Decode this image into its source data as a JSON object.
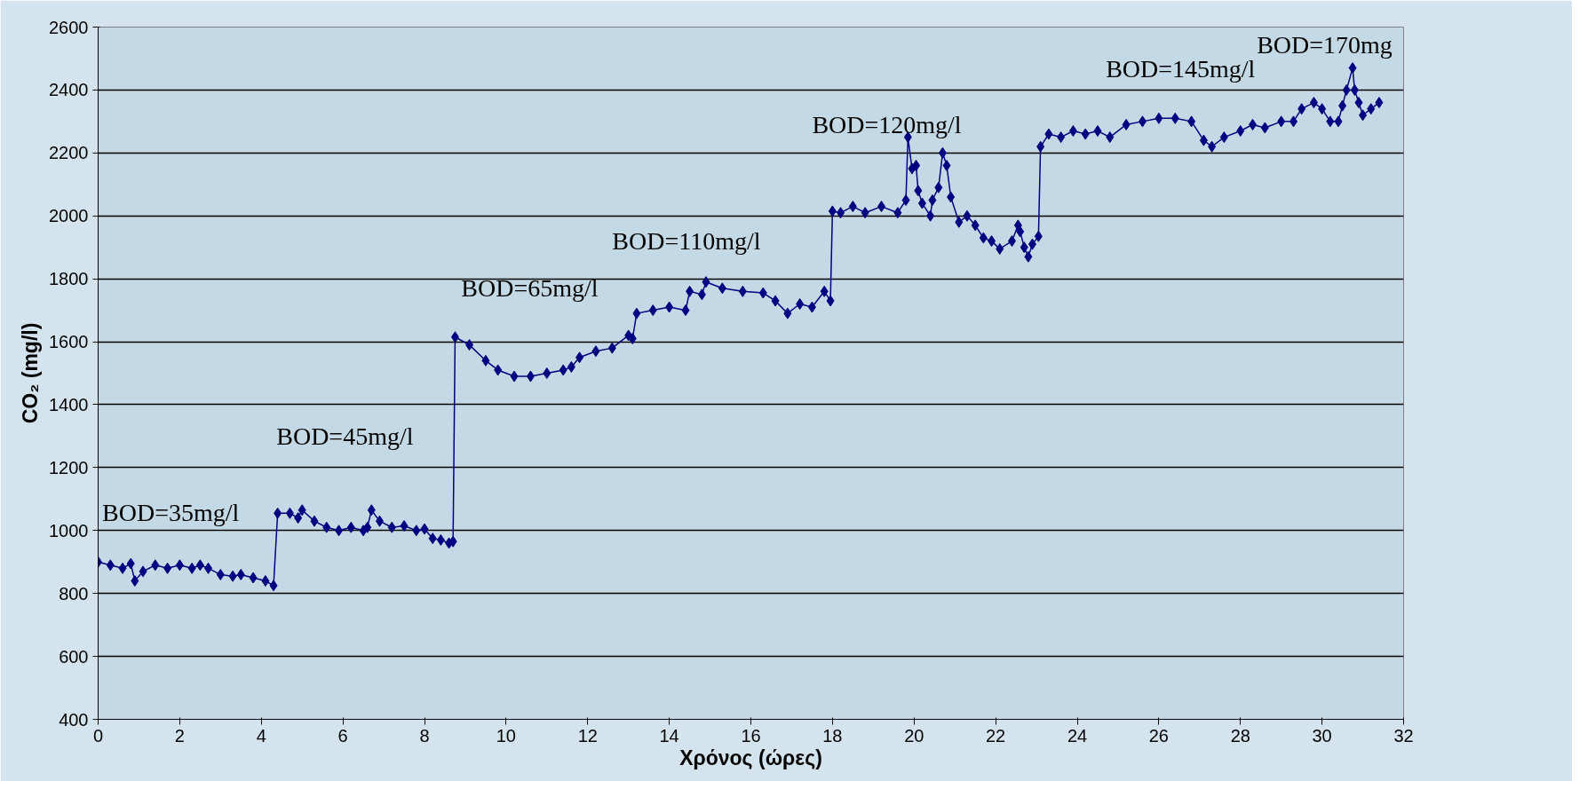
{
  "chart_data": {
    "type": "line",
    "xlabel": "Χρόνος (ώρες)",
    "ylabel": "CO₂ (mg/l)",
    "annotations": [
      "BOD=35mg/l",
      "BOD=45mg/l",
      "BOD=65mg/l",
      "BOD=110mg/l",
      "BOD=120mg/l",
      "BOD=145mg/l",
      "BOD=170mg"
    ],
    "x": [
      0,
      0.3,
      0.6,
      0.8,
      0.9,
      1.1,
      1.4,
      1.7,
      2,
      2.3,
      2.5,
      2.7,
      3,
      3.3,
      3.5,
      3.8,
      4.1,
      4.3,
      4.4,
      4.7,
      4.9,
      5,
      5.3,
      5.6,
      5.9,
      6.2,
      6.5,
      6.6,
      6.7,
      6.9,
      7.2,
      7.5,
      7.8,
      8,
      8.2,
      8.4,
      8.6,
      8.7,
      8.75,
      9.1,
      9.5,
      9.8,
      10.2,
      10.6,
      11,
      11.4,
      11.6,
      11.8,
      12.2,
      12.6,
      13,
      13.1,
      13.2,
      13.6,
      14,
      14.4,
      14.5,
      14.8,
      14.9,
      15.3,
      15.8,
      16.3,
      16.6,
      16.9,
      17.2,
      17.5,
      17.8,
      17.95,
      18,
      18.2,
      18.5,
      18.8,
      19.2,
      19.6,
      19.8,
      19.85,
      19.95,
      20.05,
      20.1,
      20.2,
      20.4,
      20.45,
      20.6,
      20.7,
      20.8,
      20.9,
      21.1,
      21.3,
      21.5,
      21.7,
      21.9,
      22.1,
      22.4,
      22.55,
      22.6,
      22.7,
      22.8,
      22.9,
      23.05,
      23.1,
      23.3,
      23.6,
      23.9,
      24.2,
      24.5,
      24.8,
      25.2,
      25.6,
      26,
      26.4,
      26.8,
      27.1,
      27.3,
      27.6,
      28,
      28.3,
      28.6,
      29,
      29.3,
      29.5,
      29.8,
      30,
      30.2,
      30.4,
      30.5,
      30.6,
      30.75,
      30.8,
      30.9,
      31,
      31.2,
      31.4
    ],
    "series": [
      {
        "color": "#000080",
        "values": [
          900,
          890,
          880,
          895,
          840,
          870,
          890,
          880,
          890,
          880,
          890,
          880,
          860,
          855,
          860,
          850,
          840,
          825,
          1055,
          1055,
          1040,
          1065,
          1030,
          1010,
          1000,
          1010,
          1000,
          1010,
          1065,
          1030,
          1010,
          1015,
          1000,
          1005,
          975,
          970,
          960,
          965,
          1615,
          1590,
          1540,
          1510,
          1490,
          1490,
          1500,
          1510,
          1520,
          1550,
          1570,
          1580,
          1620,
          1610,
          1690,
          1700,
          1710,
          1700,
          1760,
          1750,
          1790,
          1770,
          1760,
          1755,
          1730,
          1690,
          1720,
          1710,
          1760,
          1730,
          2015,
          2010,
          2030,
          2010,
          2030,
          2010,
          2050,
          2250,
          2150,
          2160,
          2080,
          2040,
          2000,
          2050,
          2090,
          2200,
          2160,
          2060,
          1980,
          2000,
          1970,
          1930,
          1920,
          1895,
          1920,
          1970,
          1950,
          1900,
          1870,
          1910,
          1935,
          2220,
          2260,
          2250,
          2270,
          2260,
          2270,
          2250,
          2290,
          2300,
          2310,
          2310,
          2300,
          2240,
          2220,
          2250,
          2270,
          2290,
          2280,
          2300,
          2300,
          2340,
          2360,
          2340,
          2300,
          2300,
          2350,
          2400,
          2470,
          2400,
          2360,
          2320,
          2340,
          2360
        ]
      }
    ],
    "xlim": [
      0,
      32
    ],
    "ylim": [
      400,
      2600
    ],
    "xticks": [
      0,
      2,
      4,
      6,
      8,
      10,
      12,
      14,
      16,
      18,
      20,
      22,
      24,
      26,
      28,
      30,
      32
    ],
    "yticks": [
      400,
      600,
      800,
      1000,
      1200,
      1400,
      1600,
      1800,
      2000,
      2200,
      2400,
      2600
    ],
    "grid": "y",
    "marker": "diamond"
  }
}
